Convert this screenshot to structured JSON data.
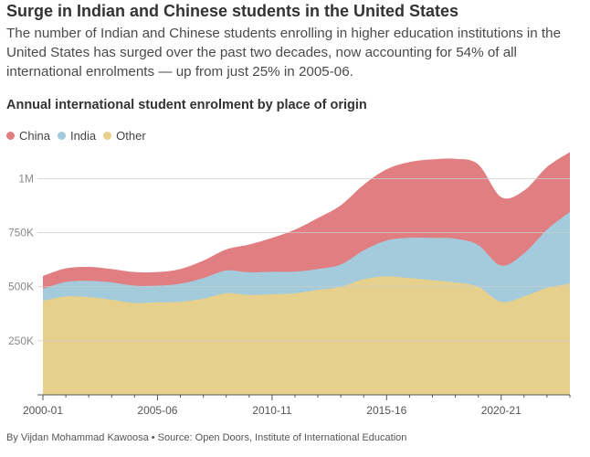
{
  "headline": "Surge in Indian and Chinese students in the United States",
  "dek": "The number of Indian and Chinese students enrolling in higher education institutions in the United States has surged over the past two decades, now accounting for 54% of all international enrolments — up from just 25% in 2005-06.",
  "footer": "By Vijdan Mohammad Kawoosa • Source: Open Doors, Institute of International Education",
  "colors": {
    "China": "#e07e82",
    "India": "#a4cbdb",
    "Other": "#e7d08c",
    "axis": "#555555",
    "grid": "#cccccc"
  },
  "chart_data": {
    "type": "area",
    "stacked": true,
    "title": "Annual international student enrolment by place of origin",
    "categories": [
      "2000-01",
      "2001-02",
      "2002-03",
      "2003-04",
      "2004-05",
      "2005-06",
      "2006-07",
      "2007-08",
      "2008-09",
      "2009-10",
      "2010-11",
      "2011-12",
      "2012-13",
      "2013-14",
      "2014-15",
      "2015-16",
      "2016-17",
      "2017-18",
      "2018-19",
      "2019-20",
      "2020-21",
      "2021-22",
      "2022-23",
      "2023-24"
    ],
    "ylim": [
      0,
      1150000
    ],
    "yticks": [
      250000,
      500000,
      750000,
      1000000
    ],
    "ytick_labels": [
      "250K",
      "500K",
      "750K",
      "1M"
    ],
    "xtick_labels": [
      "2000-01",
      "2005-06",
      "2010-11",
      "2015-16",
      "2020-21"
    ],
    "legend": [
      "China",
      "India",
      "Other"
    ],
    "legend_position": "top-left",
    "series": [
      {
        "name": "Other",
        "values": [
          435000,
          455000,
          452000,
          440000,
          425000,
          428000,
          430000,
          445000,
          470000,
          462000,
          465000,
          470000,
          485000,
          500000,
          535000,
          548000,
          540000,
          530000,
          520000,
          500000,
          430000,
          455000,
          495000,
          515000
        ]
      },
      {
        "name": "India",
        "values": [
          55000,
          67000,
          75000,
          80000,
          80000,
          77000,
          84000,
          95000,
          105000,
          105000,
          104000,
          100000,
          97000,
          103000,
          133000,
          166000,
          186000,
          196000,
          202000,
          193000,
          168000,
          200000,
          269000,
          331000
        ]
      },
      {
        "name": "China",
        "values": [
          60000,
          63000,
          65000,
          62000,
          63000,
          63000,
          68000,
          81000,
          98000,
          128000,
          157000,
          194000,
          236000,
          274000,
          304000,
          329000,
          351000,
          363000,
          370000,
          373000,
          317000,
          290000,
          290000,
          277000
        ]
      }
    ]
  }
}
